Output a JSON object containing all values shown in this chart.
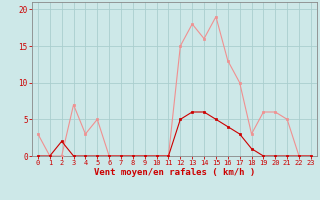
{
  "hours": [
    0,
    1,
    2,
    3,
    4,
    5,
    6,
    7,
    8,
    9,
    10,
    11,
    12,
    13,
    14,
    15,
    16,
    17,
    18,
    19,
    20,
    21,
    22,
    23
  ],
  "rafales": [
    3,
    0,
    0,
    7,
    3,
    5,
    0,
    0,
    0,
    0,
    0,
    0,
    15,
    18,
    16,
    19,
    13,
    10,
    3,
    6,
    6,
    5,
    0,
    0
  ],
  "vent_moyen": [
    0,
    0,
    2,
    0,
    0,
    0,
    0,
    0,
    0,
    0,
    0,
    0,
    5,
    6,
    6,
    5,
    4,
    3,
    1,
    0,
    0,
    0,
    0,
    0
  ],
  "bg_color": "#cde8e8",
  "grid_color": "#aacece",
  "line_color_rafales": "#f09090",
  "line_color_vent": "#cc0000",
  "marker_color_rafales": "#f09090",
  "marker_color_vent": "#cc0000",
  "xlabel": "Vent moyen/en rafales ( km/h )",
  "ylim": [
    0,
    21
  ],
  "yticks": [
    0,
    5,
    10,
    15,
    20
  ],
  "tick_label_color": "#cc0000",
  "xlabel_color": "#cc0000",
  "spine_color": "#888888"
}
